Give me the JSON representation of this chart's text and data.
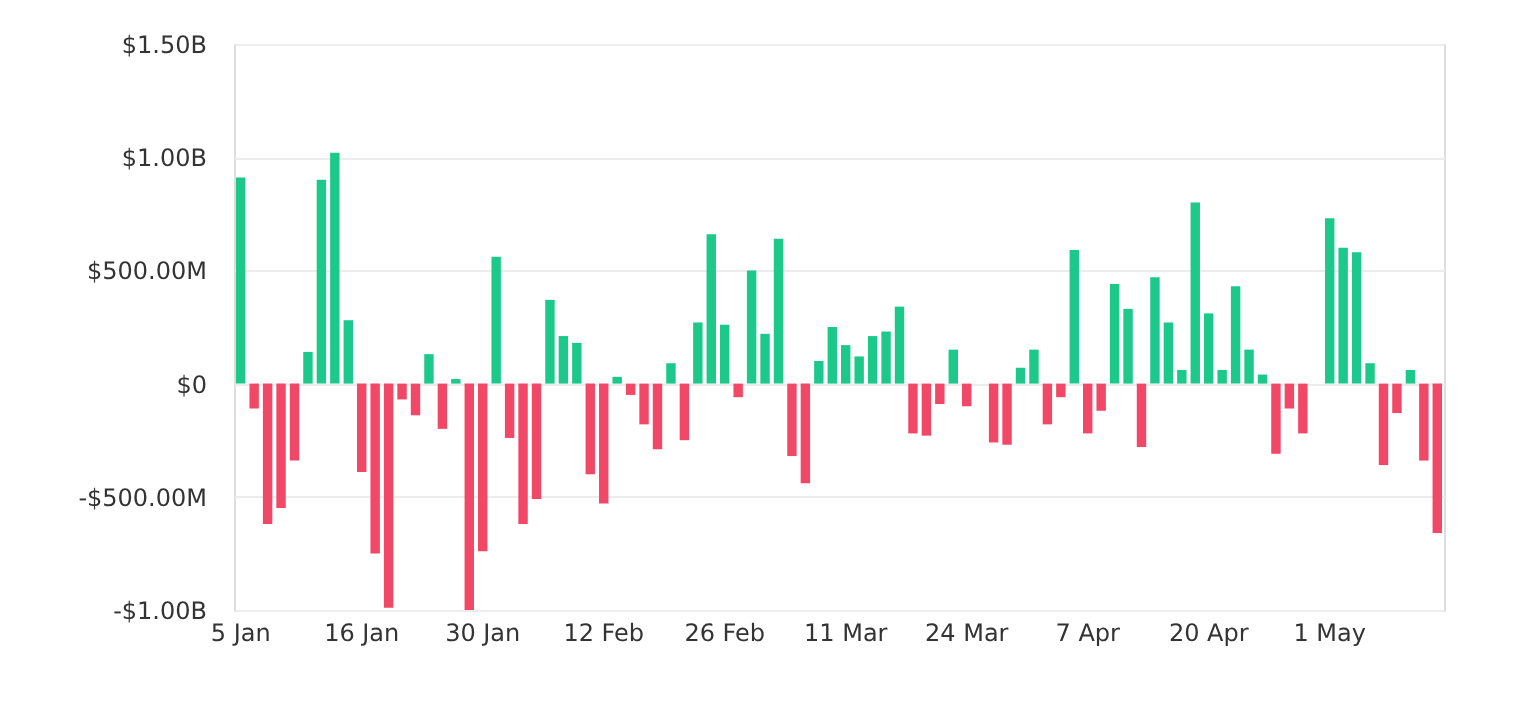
{
  "chart_data": {
    "type": "bar",
    "categories": [
      "5 Jan",
      null,
      null,
      null,
      null,
      null,
      null,
      null,
      null,
      "16 Jan",
      null,
      null,
      null,
      null,
      null,
      null,
      null,
      null,
      "30 Jan",
      null,
      null,
      null,
      null,
      null,
      null,
      null,
      null,
      "12 Feb",
      null,
      null,
      null,
      null,
      null,
      null,
      null,
      null,
      "26 Feb",
      null,
      null,
      null,
      null,
      null,
      null,
      null,
      null,
      "11 Mar",
      null,
      null,
      null,
      null,
      null,
      null,
      null,
      null,
      "24 Mar",
      null,
      null,
      null,
      null,
      null,
      null,
      null,
      null,
      "7 Apr",
      null,
      null,
      null,
      null,
      null,
      null,
      null,
      null,
      "20 Apr",
      null,
      null,
      null,
      null,
      null,
      null,
      null,
      null,
      "1 May",
      null,
      null,
      null,
      null,
      null,
      null,
      null,
      null
    ],
    "values": [
      910000000,
      -110000000,
      -620000000,
      -550000000,
      -340000000,
      140000000,
      900000000,
      1020000000,
      280000000,
      -390000000,
      -750000000,
      -990000000,
      -70000000,
      -140000000,
      130000000,
      -200000000,
      20000000,
      -1000000000,
      -740000000,
      560000000,
      -240000000,
      -620000000,
      -510000000,
      370000000,
      210000000,
      180000000,
      -400000000,
      -530000000,
      30000000,
      -50000000,
      -180000000,
      -290000000,
      90000000,
      -250000000,
      270000000,
      660000000,
      260000000,
      -60000000,
      500000000,
      220000000,
      640000000,
      -320000000,
      -440000000,
      100000000,
      250000000,
      170000000,
      120000000,
      210000000,
      230000000,
      340000000,
      -220000000,
      -230000000,
      -90000000,
      150000000,
      -100000000,
      null,
      -260000000,
      -270000000,
      70000000,
      150000000,
      -180000000,
      -60000000,
      590000000,
      -220000000,
      -120000000,
      440000000,
      330000000,
      -280000000,
      470000000,
      270000000,
      60000000,
      800000000,
      310000000,
      60000000,
      430000000,
      150000000,
      40000000,
      -310000000,
      -110000000,
      -220000000,
      0,
      730000000,
      600000000,
      580000000,
      90000000,
      -360000000,
      -130000000,
      60000000,
      -340000000,
      -660000000
    ],
    "colors": [
      "#1dc98a",
      "#f04866",
      "#f04866",
      "#f04866",
      "#f04866",
      "#1dc98a",
      "#1dc98a",
      "#1dc98a",
      "#1dc98a",
      "#f04866",
      "#f04866",
      "#f04866",
      "#f04866",
      "#f04866",
      "#1dc98a",
      "#f04866",
      "#1dc98a",
      "#f04866",
      "#f04866",
      "#1dc98a",
      "#f04866",
      "#f04866",
      "#f04866",
      "#1dc98a",
      "#1dc98a",
      "#1dc98a",
      "#f04866",
      "#f04866",
      "#1dc98a",
      "#f04866",
      "#f04866",
      "#f04866",
      "#1dc98a",
      "#f04866",
      "#1dc98a",
      "#1dc98a",
      "#1dc98a",
      "#f04866",
      "#1dc98a",
      "#1dc98a",
      "#1dc98a",
      "#f04866",
      "#f04866",
      "#1dc98a",
      "#1dc98a",
      "#1dc98a",
      "#1dc98a",
      "#1dc98a",
      "#1dc98a",
      "#1dc98a",
      "#f04866",
      "#f04866",
      "#f04866",
      "#1dc98a",
      "#f04866",
      null,
      "#f04866",
      "#f04866",
      "#1dc98a",
      "#1dc98a",
      "#f04866",
      "#f04866",
      "#1dc98a",
      "#f04866",
      "#f04866",
      "#1dc98a",
      "#1dc98a",
      "#f04866",
      "#1dc98a",
      "#1dc98a",
      "#1dc98a",
      "#1dc98a",
      "#1dc98a",
      "#1dc98a",
      "#1dc98a",
      "#1dc98a",
      "#1dc98a",
      "#f04866",
      "#f04866",
      "#f04866",
      "#1dc98a",
      "#1dc98a",
      "#1dc98a",
      "#1dc98a",
      "#1dc98a",
      "#f04866",
      "#f04866",
      "#1dc98a",
      "#f04866",
      "#f04866"
    ],
    "ylim": [
      -1000000000,
      1500000000
    ],
    "yticks": [
      {
        "value": -1000000000,
        "label": "-$1.00B"
      },
      {
        "value": -500000000,
        "label": "-$500.00M"
      },
      {
        "value": 0,
        "label": "$0"
      },
      {
        "value": 500000000,
        "label": "$500.00M"
      },
      {
        "value": 1000000000,
        "label": "$1.00B"
      },
      {
        "value": 1500000000,
        "label": "$1.50B"
      }
    ],
    "grid": "y"
  }
}
